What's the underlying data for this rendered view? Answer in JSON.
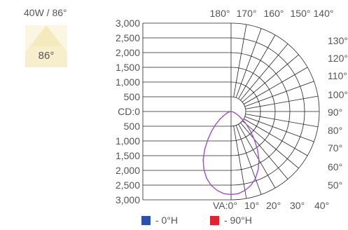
{
  "header": {
    "title": "40W / 86°"
  },
  "beam": {
    "angle_label": "86°"
  },
  "legend": [
    {
      "label": "- 0°H",
      "color": "#2a51b0"
    },
    {
      "label": "- 90°H",
      "color": "#e3202c"
    }
  ],
  "chart_data": {
    "type": "polar",
    "cd_axis_label": "CD:0",
    "cd_ticks_upper": [
      "3,000",
      "2,500",
      "2,000",
      "1,500",
      "1,000",
      "500"
    ],
    "cd_ticks_lower": [
      "500",
      "1,000",
      "1,500",
      "2,000",
      "2,500",
      "3,000"
    ],
    "cd_max": 3000,
    "angle_labels_top": [
      "180°",
      "170°",
      "160°",
      "150°",
      "140°"
    ],
    "angle_labels_right": [
      "130°",
      "120°",
      "110°",
      "100°",
      "90°",
      "80°",
      "70°",
      "60°",
      "50°"
    ],
    "angle_labels_bottom": [
      "VA:0°",
      "10°",
      "20°",
      "30°",
      "40°"
    ],
    "series": [
      {
        "name": "0°H",
        "color": "#9b4fc9",
        "angles": [
          0,
          5,
          10,
          15,
          20,
          25,
          30,
          35,
          40,
          45,
          50,
          55,
          60,
          65,
          70,
          75,
          80,
          85,
          90
        ],
        "values": [
          2820,
          2800,
          2720,
          2600,
          2420,
          2180,
          1900,
          1560,
          1220,
          930,
          680,
          470,
          310,
          200,
          130,
          80,
          40,
          15,
          0
        ]
      }
    ]
  }
}
